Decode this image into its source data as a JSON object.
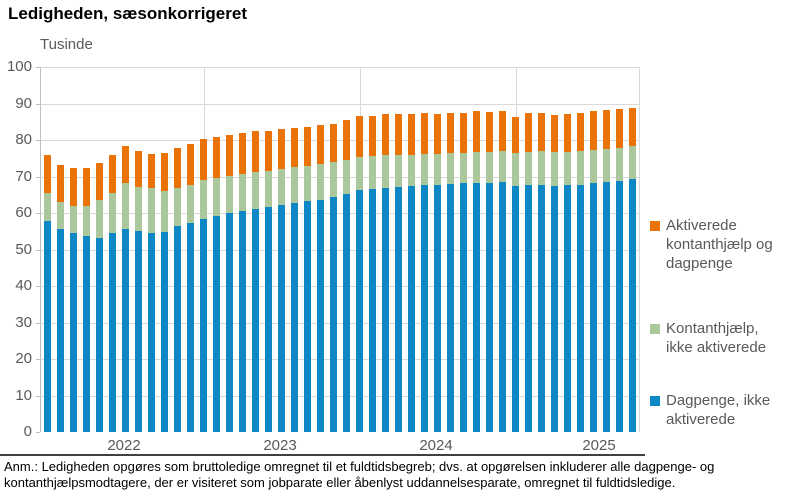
{
  "page": {
    "title": "Ledigheden, sæsonkorrigeret",
    "unit_label": "Tusinde",
    "footnote_line1": "Anm.: Ledigheden opgøres som bruttoledige omregnet til et fuldtidsbegreb; dvs. at opgørelsen inkluderer alle dagpenge- og",
    "footnote_line2": "kontanthjælpsmodtagere, der er visiteret som jobparate eller åbenlyst uddannelsesparate, omregnet til fuldtidsledige."
  },
  "colors": {
    "dagpenge_blue": "#0e87c5",
    "kontanthjaelp_green": "#abc79c",
    "aktiverede_orange": "#e97307",
    "gridline": "#d9d9d9",
    "axis_text": "#595959"
  },
  "chart_data": {
    "type": "bar",
    "stacked": true,
    "title": "Ledigheden, sæsonkorrigeret",
    "ylabel": "Tusinde",
    "xlabel": "",
    "ylim": [
      0,
      100
    ],
    "y_ticks": [
      0,
      10,
      20,
      30,
      40,
      50,
      60,
      70,
      80,
      90,
      100
    ],
    "grid": "horizontal gridlines every 10; vertical gridlines at year boundaries",
    "legend_position": "right",
    "year_labels": [
      "2022",
      "2023",
      "2024",
      "2025"
    ],
    "categories": [
      "2022-01",
      "2022-02",
      "2022-03",
      "2022-04",
      "2022-05",
      "2022-06",
      "2022-07",
      "2022-08",
      "2022-09",
      "2022-10",
      "2022-11",
      "2022-12",
      "2023-01",
      "2023-02",
      "2023-03",
      "2023-04",
      "2023-05",
      "2023-06",
      "2023-07",
      "2023-08",
      "2023-09",
      "2023-10",
      "2023-11",
      "2023-12",
      "2024-01",
      "2024-02",
      "2024-03",
      "2024-04",
      "2024-05",
      "2024-06",
      "2024-07",
      "2024-08",
      "2024-09",
      "2024-10",
      "2024-11",
      "2024-12",
      "2025-01",
      "2025-02",
      "2025-03",
      "2025-04",
      "2025-05",
      "2025-06",
      "2025-07",
      "2025-08",
      "2025-09",
      "2025-10"
    ],
    "series": [
      {
        "name": "Dagpenge, ikke aktiverede",
        "color": "#0e87c5",
        "values": [
          57.8,
          55.7,
          54.6,
          53.8,
          53.2,
          54.4,
          55.5,
          55.1,
          54.6,
          54.8,
          56.5,
          57.3,
          58.3,
          59.2,
          59.9,
          60.6,
          61.2,
          61.7,
          62.2,
          62.7,
          63.2,
          63.7,
          64.3,
          65.1,
          66.3,
          66.5,
          66.9,
          67.2,
          67.4,
          67.7,
          67.8,
          68.0,
          68.1,
          68.3,
          68.3,
          68.5,
          67.4,
          67.6,
          67.8,
          67.5,
          67.6,
          67.8,
          68.2,
          68.5,
          68.8,
          69.3
        ]
      },
      {
        "name": "Kontanthjælp, ikke aktiverede",
        "color": "#abc79c",
        "values": [
          7.6,
          7.4,
          7.4,
          8.2,
          10.4,
          11.0,
          12.6,
          12.1,
          12.3,
          11.2,
          10.4,
          10.3,
          10.7,
          10.4,
          10.2,
          10.1,
          10.0,
          9.9,
          9.9,
          9.8,
          9.8,
          9.7,
          9.6,
          9.5,
          9.1,
          9.0,
          8.9,
          8.8,
          8.6,
          8.6,
          8.4,
          8.4,
          8.3,
          8.5,
          8.4,
          8.4,
          9.1,
          9.2,
          9.2,
          9.2,
          9.2,
          9.2,
          9.1,
          9.0,
          9.0,
          9.0
        ]
      },
      {
        "name": "Aktiverede kontanthjælp og dagpenge",
        "color": "#e97307",
        "values": [
          10.6,
          10.1,
          10.2,
          10.4,
          10.0,
          10.5,
          10.2,
          9.8,
          9.4,
          10.5,
          10.8,
          11.2,
          11.3,
          11.3,
          11.3,
          11.3,
          11.2,
          11.0,
          10.9,
          10.9,
          10.6,
          10.6,
          10.6,
          10.9,
          11.1,
          11.1,
          11.2,
          11.1,
          11.0,
          11.1,
          11.0,
          11.1,
          11.1,
          11.1,
          11.1,
          11.0,
          9.9,
          10.5,
          10.5,
          10.2,
          10.2,
          10.5,
          10.7,
          10.7,
          10.6,
          10.4
        ]
      }
    ],
    "legend_order_top_to_bottom": [
      "Aktiverede kontanthjælp og dagpenge",
      "Kontanthjælp, ikke aktiverede",
      "Dagpenge, ikke aktiverede"
    ]
  }
}
